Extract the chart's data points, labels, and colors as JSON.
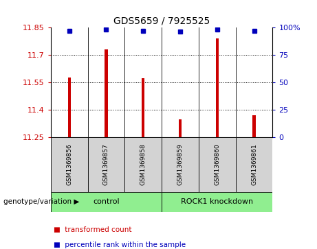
{
  "title": "GDS5659 / 7925525",
  "samples": [
    "GSM1369856",
    "GSM1369857",
    "GSM1369858",
    "GSM1369859",
    "GSM1369860",
    "GSM1369861"
  ],
  "bar_values": [
    11.575,
    11.73,
    11.572,
    11.345,
    11.79,
    11.37
  ],
  "percentile_values": [
    97,
    98,
    97,
    96,
    98,
    97
  ],
  "bar_color": "#cc0000",
  "dot_color": "#0000bb",
  "ylim_left": [
    11.25,
    11.85
  ],
  "ylim_right": [
    0,
    100
  ],
  "yticks_left": [
    11.25,
    11.4,
    11.55,
    11.7,
    11.85
  ],
  "yticks_right": [
    0,
    25,
    50,
    75,
    100
  ],
  "genotype_label": "genotype/variation",
  "legend_bar_label": "transformed count",
  "legend_dot_label": "percentile rank within the sample",
  "bar_width": 0.08,
  "background_color": "#ffffff",
  "plot_bg_color": "#ffffff",
  "tick_label_color_left": "#cc0000",
  "tick_label_color_right": "#0000bb",
  "sample_bg_color": "#d3d3d3",
  "group_green_light": "#90ee90",
  "group_green_dark": "#66cc66",
  "groups": [
    {
      "start": 0,
      "end": 2,
      "label": "control"
    },
    {
      "start": 3,
      "end": 5,
      "label": "ROCK1 knockdown"
    }
  ]
}
